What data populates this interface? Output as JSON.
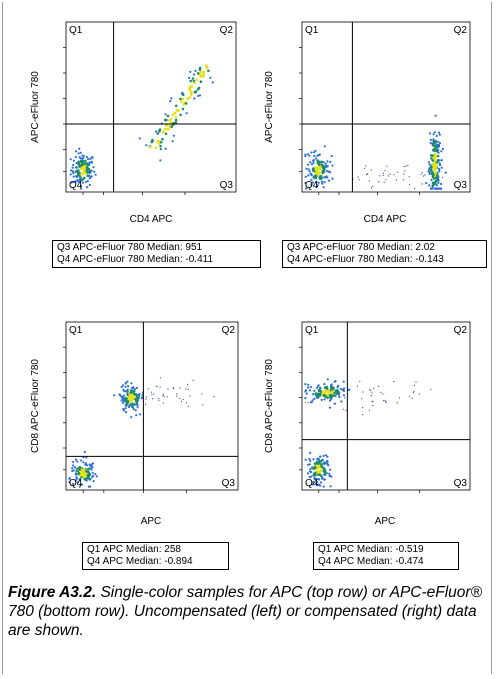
{
  "chart_data": [
    {
      "type": "scatter",
      "panel": "top-left",
      "xlabel": "CD4 APC",
      "ylabel": "APC-eFluor 780",
      "quadrant_labels": [
        "Q1",
        "Q2",
        "Q3",
        "Q4"
      ],
      "gate": {
        "x": 0.28,
        "y": 0.4
      },
      "populations": [
        {
          "name": "Q4 cluster",
          "center": [
            0.1,
            0.13
          ],
          "spread": [
            0.035,
            0.05
          ],
          "count": 120,
          "density": "high"
        },
        {
          "name": "diagonal population",
          "from": [
            0.5,
            0.24
          ],
          "to": [
            0.83,
            0.74
          ],
          "count": 110,
          "density": "high"
        }
      ],
      "stats": [
        "Q3 APC-eFluor 780 Median: 951",
        "Q4 APC-eFluor 780 Median: -0.411"
      ]
    },
    {
      "type": "scatter",
      "panel": "top-right",
      "xlabel": "CD4 APC",
      "ylabel": "APC-eFluor 780",
      "quadrant_labels": [
        "Q1",
        "Q2",
        "Q3",
        "Q4"
      ],
      "gate": {
        "x": 0.3,
        "y": 0.4
      },
      "populations": [
        {
          "name": "Q4 cluster",
          "center": [
            0.1,
            0.13
          ],
          "spread": [
            0.035,
            0.05
          ],
          "count": 120,
          "density": "high"
        },
        {
          "name": "Q3 column",
          "center": [
            0.79,
            0.16
          ],
          "spread": [
            0.02,
            0.12
          ],
          "count": 150,
          "density": "high"
        },
        {
          "name": "Q3 scatter",
          "center": [
            0.55,
            0.1
          ],
          "spread": [
            0.12,
            0.04
          ],
          "count": 40,
          "density": "low"
        }
      ],
      "stats": [
        "Q3 APC-eFluor 780 Median: 2.02",
        "Q4 APC-eFluor 780 Median: -0.143"
      ]
    },
    {
      "type": "scatter",
      "panel": "bottom-left",
      "xlabel": "APC",
      "ylabel": "CD8 APC-eFluor 780",
      "quadrant_labels": [
        "Q1",
        "Q2",
        "Q3",
        "Q4"
      ],
      "gate": {
        "x": 0.45,
        "y": 0.2
      },
      "populations": [
        {
          "name": "Q4 cluster",
          "center": [
            0.1,
            0.1
          ],
          "spread": [
            0.035,
            0.04
          ],
          "count": 110,
          "density": "high"
        },
        {
          "name": "Q1 cluster",
          "center": [
            0.38,
            0.55
          ],
          "spread": [
            0.035,
            0.04
          ],
          "count": 110,
          "density": "high"
        },
        {
          "name": "Q1-Q2 tail",
          "center": [
            0.58,
            0.55
          ],
          "spread": [
            0.12,
            0.05
          ],
          "count": 40,
          "density": "low"
        }
      ],
      "stats": [
        "Q1 APC Median: 258",
        "Q4 APC Median: -0.894"
      ]
    },
    {
      "type": "scatter",
      "panel": "bottom-right",
      "xlabel": "APC",
      "ylabel": "CD8 APC-eFluor 780",
      "quadrant_labels": [
        "Q1",
        "Q2",
        "Q3",
        "Q4"
      ],
      "gate": {
        "x": 0.27,
        "y": 0.3
      },
      "populations": [
        {
          "name": "Q4 cluster",
          "center": [
            0.1,
            0.12
          ],
          "spread": [
            0.035,
            0.045
          ],
          "count": 110,
          "density": "high"
        },
        {
          "name": "Q1 cluster",
          "center": [
            0.15,
            0.58
          ],
          "spread": [
            0.06,
            0.03
          ],
          "count": 120,
          "density": "high"
        },
        {
          "name": "Q1-Q2 tail",
          "center": [
            0.43,
            0.56
          ],
          "spread": [
            0.15,
            0.05
          ],
          "count": 40,
          "density": "low"
        }
      ],
      "stats": [
        "Q1 APC Median: -0.519",
        "Q4 APC Median: -0.474"
      ]
    }
  ],
  "caption": {
    "label": "Figure A3.2.",
    "text": " Single-color samples for APC (top row) or APC-eFluor® 780 (bottom row). Uncompensated (left) or compensated (right) data are shown."
  },
  "colors": {
    "density_high": "#1e8a6a",
    "density_mid": "#2a6fd6",
    "density_core": "#e3e21b",
    "density_low": "#3a3f8f"
  }
}
